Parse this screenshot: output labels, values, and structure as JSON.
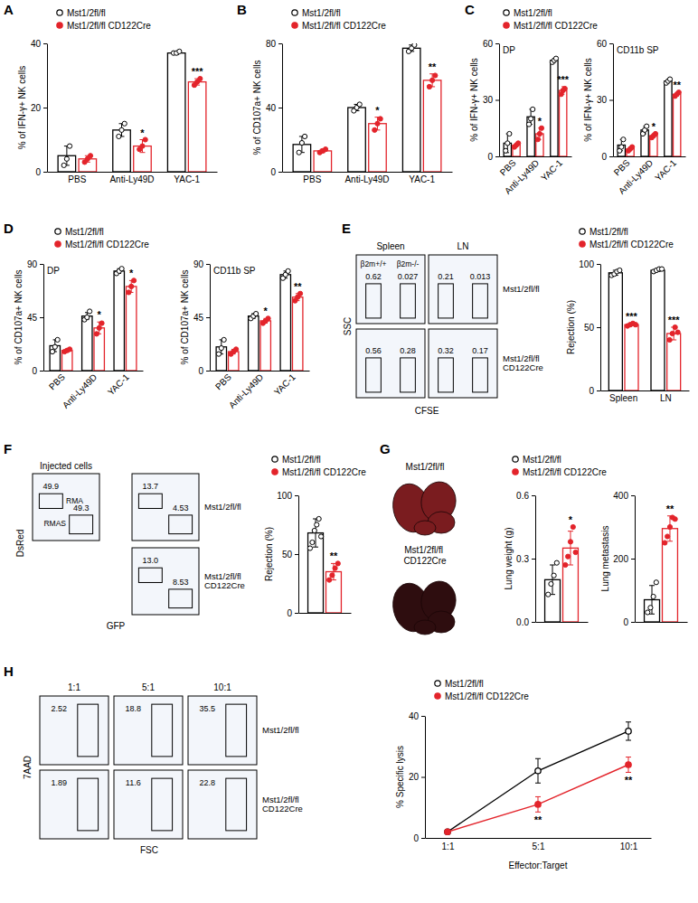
{
  "chart_data": [
    {
      "type": "bar",
      "panel": "A",
      "categories": [
        "PBS",
        "Anti-Ly49D",
        "YAC-1"
      ],
      "y_label": "% of IFN-γ+ NK cells",
      "ylim": [
        0,
        40
      ],
      "yticks": [
        0,
        20,
        40
      ],
      "legend": "top",
      "series": [
        {
          "name": "Mst1/2fl/fl",
          "color": "#000000",
          "marker": "open-circle",
          "values": [
            5,
            13,
            37
          ],
          "errors": [
            3,
            2,
            0.5
          ],
          "points": [
            [
              2,
              4,
              8
            ],
            [
              11,
              13,
              15
            ],
            [
              37,
              37,
              37.5
            ]
          ]
        },
        {
          "name": "Mst1/2fl/fl CD122Cre",
          "color": "#e3242b",
          "marker": "circle",
          "values": [
            4,
            8,
            28
          ],
          "errors": [
            1,
            2,
            1
          ],
          "points": [
            [
              3,
              4,
              5
            ],
            [
              7,
              8,
              10
            ],
            [
              27,
              28,
              29
            ]
          ],
          "significance": [
            null,
            "*",
            "***"
          ]
        }
      ]
    },
    {
      "type": "bar",
      "panel": "B",
      "categories": [
        "PBS",
        "Anti-Ly49D",
        "YAC-1"
      ],
      "y_label": "% of CD107a+ NK cells",
      "ylim": [
        0,
        80
      ],
      "yticks": [
        0,
        40,
        80
      ],
      "legend": "top",
      "series": [
        {
          "name": "Mst1/2fl/fl",
          "color": "#000000",
          "marker": "open-circle",
          "values": [
            17,
            40,
            77
          ],
          "errors": [
            5,
            2,
            2
          ],
          "points": [
            [
              12,
              18,
              22
            ],
            [
              38,
              40,
              42
            ],
            [
              75,
              77,
              79
            ]
          ]
        },
        {
          "name": "Mst1/2fl/fl CD122Cre",
          "color": "#e3242b",
          "marker": "circle",
          "values": [
            13,
            30,
            57
          ],
          "errors": [
            1,
            4,
            4
          ],
          "points": [
            [
              12,
              13,
              14
            ],
            [
              26,
              30,
              33
            ],
            [
              53,
              57,
              60
            ]
          ],
          "significance": [
            null,
            "*",
            "**"
          ]
        }
      ]
    },
    {
      "type": "bar",
      "panel": "C",
      "title": "DP",
      "categories": [
        "PBS",
        "Anti-Ly49D",
        "YAC-1"
      ],
      "y_label": "% of IFN-γ+ NK cells",
      "ylim": [
        0,
        60
      ],
      "yticks": [
        0,
        30,
        60
      ],
      "legend": "top",
      "series": [
        {
          "name": "Mst1/2fl/fl",
          "color": "#000000",
          "marker": "open-circle",
          "values": [
            7,
            21,
            51
          ],
          "errors": [
            5,
            4,
            1
          ],
          "points": [
            [
              3,
              7,
              12
            ],
            [
              17,
              20,
              25
            ],
            [
              50,
              51,
              52
            ]
          ]
        },
        {
          "name": "Mst1/2fl/fl CD122Cre",
          "color": "#e3242b",
          "marker": "circle",
          "values": [
            6,
            12,
            35
          ],
          "errors": [
            1,
            3,
            2
          ],
          "points": [
            [
              5,
              6,
              7
            ],
            [
              9,
              12,
              15
            ],
            [
              33,
              35,
              36
            ]
          ],
          "significance": [
            null,
            "*",
            "***"
          ]
        }
      ]
    },
    {
      "type": "bar",
      "title": "CD11b SP",
      "categories": [
        "PBS",
        "Anti-Ly49D",
        "YAC-1"
      ],
      "y_label": "% of IFN-γ+ NK cells",
      "ylim": [
        0,
        60
      ],
      "yticks": [
        0,
        30,
        60
      ],
      "series": [
        {
          "color": "#000000",
          "marker": "open-circle",
          "values": [
            6,
            14,
            40
          ],
          "errors": [
            3,
            2,
            1
          ],
          "points": [
            [
              3,
              5,
              9
            ],
            [
              12,
              14,
              16
            ],
            [
              39,
              40,
              41
            ]
          ]
        },
        {
          "color": "#e3242b",
          "marker": "circle",
          "values": [
            4,
            11,
            33
          ],
          "errors": [
            1,
            1,
            1
          ],
          "points": [
            [
              3,
              4,
              5
            ],
            [
              10,
              11,
              12
            ],
            [
              32,
              33,
              34
            ]
          ],
          "significance": [
            null,
            "*",
            "**"
          ]
        }
      ]
    },
    {
      "type": "bar",
      "panel": "D",
      "title": "DP",
      "categories": [
        "PBS",
        "Anti-Ly49D",
        "YAC-1"
      ],
      "y_label": "% of CD107a+ NK cells",
      "ylim": [
        0,
        90
      ],
      "yticks": [
        0,
        45,
        90
      ],
      "legend": "top",
      "series": [
        {
          "name": "Mst1/2fl/fl",
          "color": "#000000",
          "marker": "open-circle",
          "values": [
            21,
            46,
            84
          ],
          "errors": [
            5,
            3,
            2
          ],
          "points": [
            [
              16,
              20,
              26
            ],
            [
              43,
              45,
              50
            ],
            [
              82,
              84,
              86
            ]
          ]
        },
        {
          "name": "Mst1/2fl/fl CD122Cre",
          "color": "#e3242b",
          "marker": "circle",
          "values": [
            17,
            36,
            71
          ],
          "errors": [
            1,
            5,
            5
          ],
          "points": [
            [
              16,
              17,
              18
            ],
            [
              31,
              36,
              40
            ],
            [
              66,
              71,
              76
            ]
          ],
          "significance": [
            null,
            "*",
            "*"
          ]
        }
      ]
    },
    {
      "type": "bar",
      "title": "CD11b SP",
      "categories": [
        "PBS",
        "Anti-Ly49D",
        "YAC-1"
      ],
      "y_label": "% of CD107a+ NK cells",
      "ylim": [
        0,
        90
      ],
      "yticks": [
        0,
        45,
        90
      ],
      "series": [
        {
          "color": "#000000",
          "marker": "open-circle",
          "values": [
            20,
            46,
            81
          ],
          "errors": [
            6,
            2,
            3
          ],
          "points": [
            [
              14,
              19,
              26
            ],
            [
              44,
              46,
              48
            ],
            [
              78,
              81,
              84
            ]
          ]
        },
        {
          "color": "#e3242b",
          "marker": "circle",
          "values": [
            16,
            42,
            62
          ],
          "errors": [
            2,
            2,
            3
          ],
          "points": [
            [
              14,
              16,
              18
            ],
            [
              40,
              42,
              44
            ],
            [
              59,
              62,
              65
            ]
          ],
          "significance": [
            null,
            "*",
            "**"
          ]
        }
      ]
    },
    {
      "type": "flow",
      "panel": "E",
      "x_label": "CFSE",
      "y_label": "SSC",
      "column_labels": [
        "Spleen",
        "LN"
      ],
      "row_labels": [
        "Mst1/2fl/fl",
        "Mst1/2fl/fl CD122Cre"
      ],
      "plots": [
        {
          "gates": [
            {
              "label": "β2m+/+",
              "value": 0.62
            },
            {
              "label": "β2m-/-",
              "value": 0.027
            }
          ]
        },
        {
          "gates": [
            {
              "value": 0.21
            },
            {
              "value": 0.013
            }
          ]
        },
        {
          "gates": [
            {
              "value": 0.56
            },
            {
              "value": 0.28
            }
          ]
        },
        {
          "gates": [
            {
              "value": 0.32
            },
            {
              "value": 0.17
            }
          ]
        }
      ]
    },
    {
      "type": "bar",
      "categories": [
        "Spleen",
        "LN"
      ],
      "y_label": "Rejection (%)",
      "ylim": [
        0,
        100
      ],
      "yticks": [
        0,
        50,
        100
      ],
      "legend": "top",
      "series": [
        {
          "name": "Mst1/2fl/fl",
          "color": "#000000",
          "marker": "open-circle",
          "values": [
            93,
            95
          ],
          "errors": [
            2,
            1
          ],
          "points": [
            [
              91,
              92,
              94,
              95
            ],
            [
              94,
              95,
              96,
              96
            ]
          ]
        },
        {
          "name": "Mst1/2fl/fl CD122Cre",
          "color": "#e3242b",
          "marker": "circle",
          "values": [
            52,
            45
          ],
          "errors": [
            1,
            5
          ],
          "points": [
            [
              51,
              52,
              53,
              52
            ],
            [
              40,
              45,
              50,
              46
            ]
          ],
          "significance": [
            "***",
            "***"
          ]
        }
      ]
    },
    {
      "type": "flow",
      "panel": "F",
      "x_label": "GFP",
      "y_label": "DsRed",
      "row_labels": [
        "Mst1/2fl/fl",
        "Mst1/2fl/fl CD122Cre"
      ],
      "plots": [
        {
          "title": "Injected cells",
          "gates": [
            {
              "label": "RMA",
              "value": 49.9
            },
            {
              "label": "RMAS",
              "value": 49.3
            }
          ]
        },
        {
          "gates": [
            {
              "value": 13.7
            },
            {
              "value": 4.53
            }
          ]
        },
        {
          "gates": [
            {
              "value": 13.0,
              "value_label": "13.0"
            },
            {
              "value": 8.53
            }
          ]
        }
      ]
    },
    {
      "type": "bar",
      "categories": [
        null
      ],
      "y_label": "Rejection (%)",
      "ylim": [
        0,
        100
      ],
      "yticks": [
        0,
        50,
        100
      ],
      "legend": "top",
      "series": [
        {
          "name": "Mst1/2fl/fl",
          "color": "#000000",
          "marker": "open-circle",
          "values": [
            68
          ],
          "errors": [
            12
          ],
          "points": [
            [
              55,
              60,
              70,
              75,
              80,
              65
            ]
          ]
        },
        {
          "name": "Mst1/2fl/fl CD122Cre",
          "color": "#e3242b",
          "marker": "circle",
          "values": [
            35
          ],
          "errors": [
            7
          ],
          "points": [
            [
              28,
              32,
              38,
              42
            ]
          ],
          "significance": [
            "**"
          ]
        }
      ]
    },
    {
      "type": "image",
      "panel": "G",
      "labels": [
        "Mst1/2fl/fl",
        "Mst1/2fl/fl CD122Cre"
      ]
    },
    {
      "type": "bar",
      "categories": [
        null
      ],
      "y_label": "Lung weight (g)",
      "ylim": [
        0,
        0.6
      ],
      "yticks": [
        {
          "value": 0,
          "label": "0.0"
        },
        {
          "value": 0.3,
          "label": "0.3"
        },
        {
          "value": 0.6,
          "label": "0.6"
        }
      ],
      "legend": "top",
      "series": [
        {
          "name": "Mst1/2fl/fl",
          "color": "#000000",
          "marker": "open-circle",
          "values": [
            0.2
          ],
          "errors": [
            0.07
          ],
          "points": [
            [
              0.13,
              0.18,
              0.22,
              0.28
            ]
          ]
        },
        {
          "name": "Mst1/2fl/fl CD122Cre",
          "color": "#e3242b",
          "marker": "circle",
          "values": [
            0.35
          ],
          "errors": [
            0.08
          ],
          "points": [
            [
              0.27,
              0.31,
              0.38,
              0.45,
              0.33
            ]
          ],
          "significance": [
            "*"
          ]
        }
      ]
    },
    {
      "type": "bar",
      "categories": [
        null
      ],
      "y_label": "Lung metastasis",
      "ylim": [
        0,
        400
      ],
      "yticks": [
        0,
        200,
        400
      ],
      "series": [
        {
          "color": "#000000",
          "marker": "open-circle",
          "values": [
            70
          ],
          "errors": [
            45
          ],
          "points": [
            [
              30,
              45,
              80,
              125
            ]
          ]
        },
        {
          "color": "#e3242b",
          "marker": "circle",
          "values": [
            295
          ],
          "errors": [
            40
          ],
          "points": [
            [
              250,
              270,
              300,
              330,
              325
            ]
          ],
          "significance": [
            "**"
          ]
        }
      ]
    },
    {
      "type": "flow",
      "panel": "H",
      "x_label": "FSC",
      "y_label": "7AAD",
      "column_labels": [
        "1:1",
        "5:1",
        "10:1"
      ],
      "row_labels": [
        "Mst1/2fl/fl",
        "Mst1/2fl/fl CD122Cre"
      ],
      "plots": [
        {
          "gates": [
            {
              "value": 2.52
            }
          ]
        },
        {
          "gates": [
            {
              "value": 18.8
            }
          ]
        },
        {
          "gates": [
            {
              "value": 35.5
            }
          ]
        },
        {
          "gates": [
            {
              "value": 1.89
            }
          ]
        },
        {
          "gates": [
            {
              "value": 11.6
            }
          ]
        },
        {
          "gates": [
            {
              "value": 22.8
            }
          ]
        }
      ]
    },
    {
      "type": "line",
      "categories": [
        "1:1",
        "5:1",
        "10:1"
      ],
      "x_label": "Effector:Target",
      "y_label": "% Specific lysis",
      "ylim": [
        0,
        40
      ],
      "yticks": [
        0,
        20,
        40
      ],
      "legend": "top",
      "series": [
        {
          "name": "Mst1/2fl/fl",
          "color": "#000000",
          "marker": "open-circle",
          "line_style": "solid",
          "values": [
            2,
            22,
            35
          ],
          "errors": [
            0.5,
            4,
            3
          ]
        },
        {
          "name": "Mst1/2fl/fl CD122Cre",
          "color": "#e3242b",
          "marker": "circle",
          "line_style": "solid",
          "values": [
            2,
            11,
            24
          ],
          "errors": [
            0.5,
            2.5,
            2.5
          ],
          "significance": [
            null,
            "**",
            "**"
          ]
        }
      ]
    }
  ]
}
